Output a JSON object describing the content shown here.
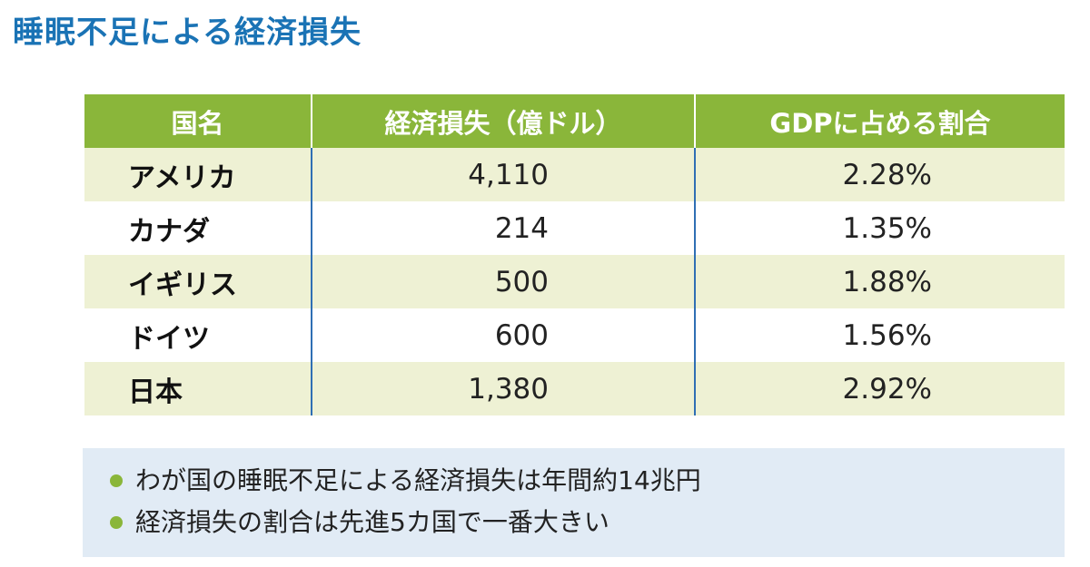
{
  "title": "睡眠不足による経済損失",
  "colors": {
    "title": "#1a73b5",
    "header_bg": "#8ab63a",
    "row_alt_bg": "#eef1d4",
    "column_divider": "#2f6fb4",
    "notes_bg": "#e1ebf5",
    "bullet": "#8ab63a"
  },
  "table": {
    "headers": [
      "国名",
      "経済損失（億ドル）",
      "GDPに占める割合"
    ],
    "rows": [
      {
        "country": "アメリカ",
        "loss": "4,110",
        "gdp_share": "2.28%"
      },
      {
        "country": "カナダ",
        "loss": "214",
        "gdp_share": "1.35%"
      },
      {
        "country": "イギリス",
        "loss": "500",
        "gdp_share": "1.88%"
      },
      {
        "country": "ドイツ",
        "loss": "600",
        "gdp_share": "1.56%"
      },
      {
        "country": "日本",
        "loss": "1,380",
        "gdp_share": "2.92%"
      }
    ]
  },
  "notes": [
    "わが国の睡眠不足による経済損失は年間約14兆円",
    "経済損失の割合は先進5カ国で一番大きい"
  ]
}
